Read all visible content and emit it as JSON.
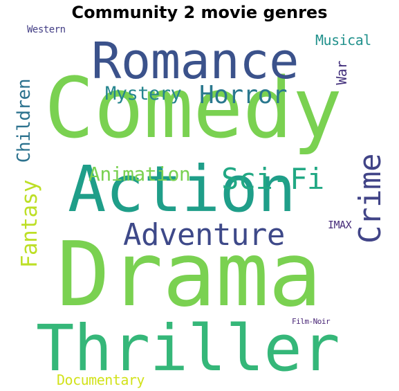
{
  "chart_data": {
    "type": "wordcloud",
    "title": "Community 2 movie genres",
    "background": "#ffffff",
    "words": [
      {
        "text": "Drama",
        "color": "#7ad151"
      },
      {
        "text": "Comedy",
        "color": "#7ad151"
      },
      {
        "text": "Action",
        "color": "#1f9e89"
      },
      {
        "text": "Thriller",
        "color": "#35b779"
      },
      {
        "text": "Romance",
        "color": "#3b528b"
      },
      {
        "text": "Adventure",
        "color": "#3e4989"
      },
      {
        "text": "Sci-Fi",
        "color": "#22a884"
      },
      {
        "text": "Crime",
        "color": "#414487"
      },
      {
        "text": "Horror",
        "color": "#2a788e"
      },
      {
        "text": "Mystery",
        "color": "#25858e"
      },
      {
        "text": "Animation",
        "color": "#7ad151"
      },
      {
        "text": "Children",
        "color": "#2c728e"
      },
      {
        "text": "Fantasy",
        "color": "#bddf26"
      },
      {
        "text": "Documentary",
        "color": "#d2e21b"
      },
      {
        "text": "War",
        "color": "#46337e"
      },
      {
        "text": "Musical",
        "color": "#21918c"
      },
      {
        "text": "IMAX",
        "color": "#472c7a"
      },
      {
        "text": "Western",
        "color": "#433e85"
      },
      {
        "text": "Film-Noir",
        "color": "#482576"
      }
    ]
  }
}
